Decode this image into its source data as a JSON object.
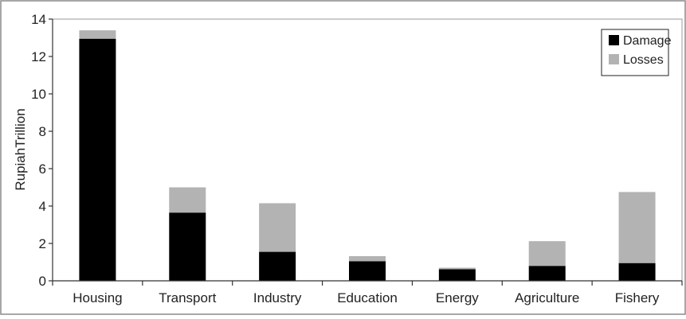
{
  "chart_data": {
    "type": "bar",
    "stacked": true,
    "categories": [
      "Housing",
      "Transport",
      "Industry",
      "Education",
      "Energy",
      "Agriculture",
      "Fishery"
    ],
    "series": [
      {
        "name": "Damage",
        "values": [
          12.95,
          3.65,
          1.55,
          1.05,
          0.62,
          0.8,
          0.95
        ],
        "color": "#000000"
      },
      {
        "name": "Losses",
        "values": [
          0.45,
          1.35,
          2.6,
          0.27,
          0.08,
          1.32,
          3.8
        ],
        "color": "#b3b3b3"
      }
    ],
    "title": "",
    "xlabel": "",
    "ylabel": "RupiahTrillion",
    "ylim": [
      0,
      14
    ],
    "yticks": [
      0,
      2,
      4,
      6,
      8,
      10,
      12,
      14
    ],
    "grid": false,
    "legend_position": "top-right"
  }
}
